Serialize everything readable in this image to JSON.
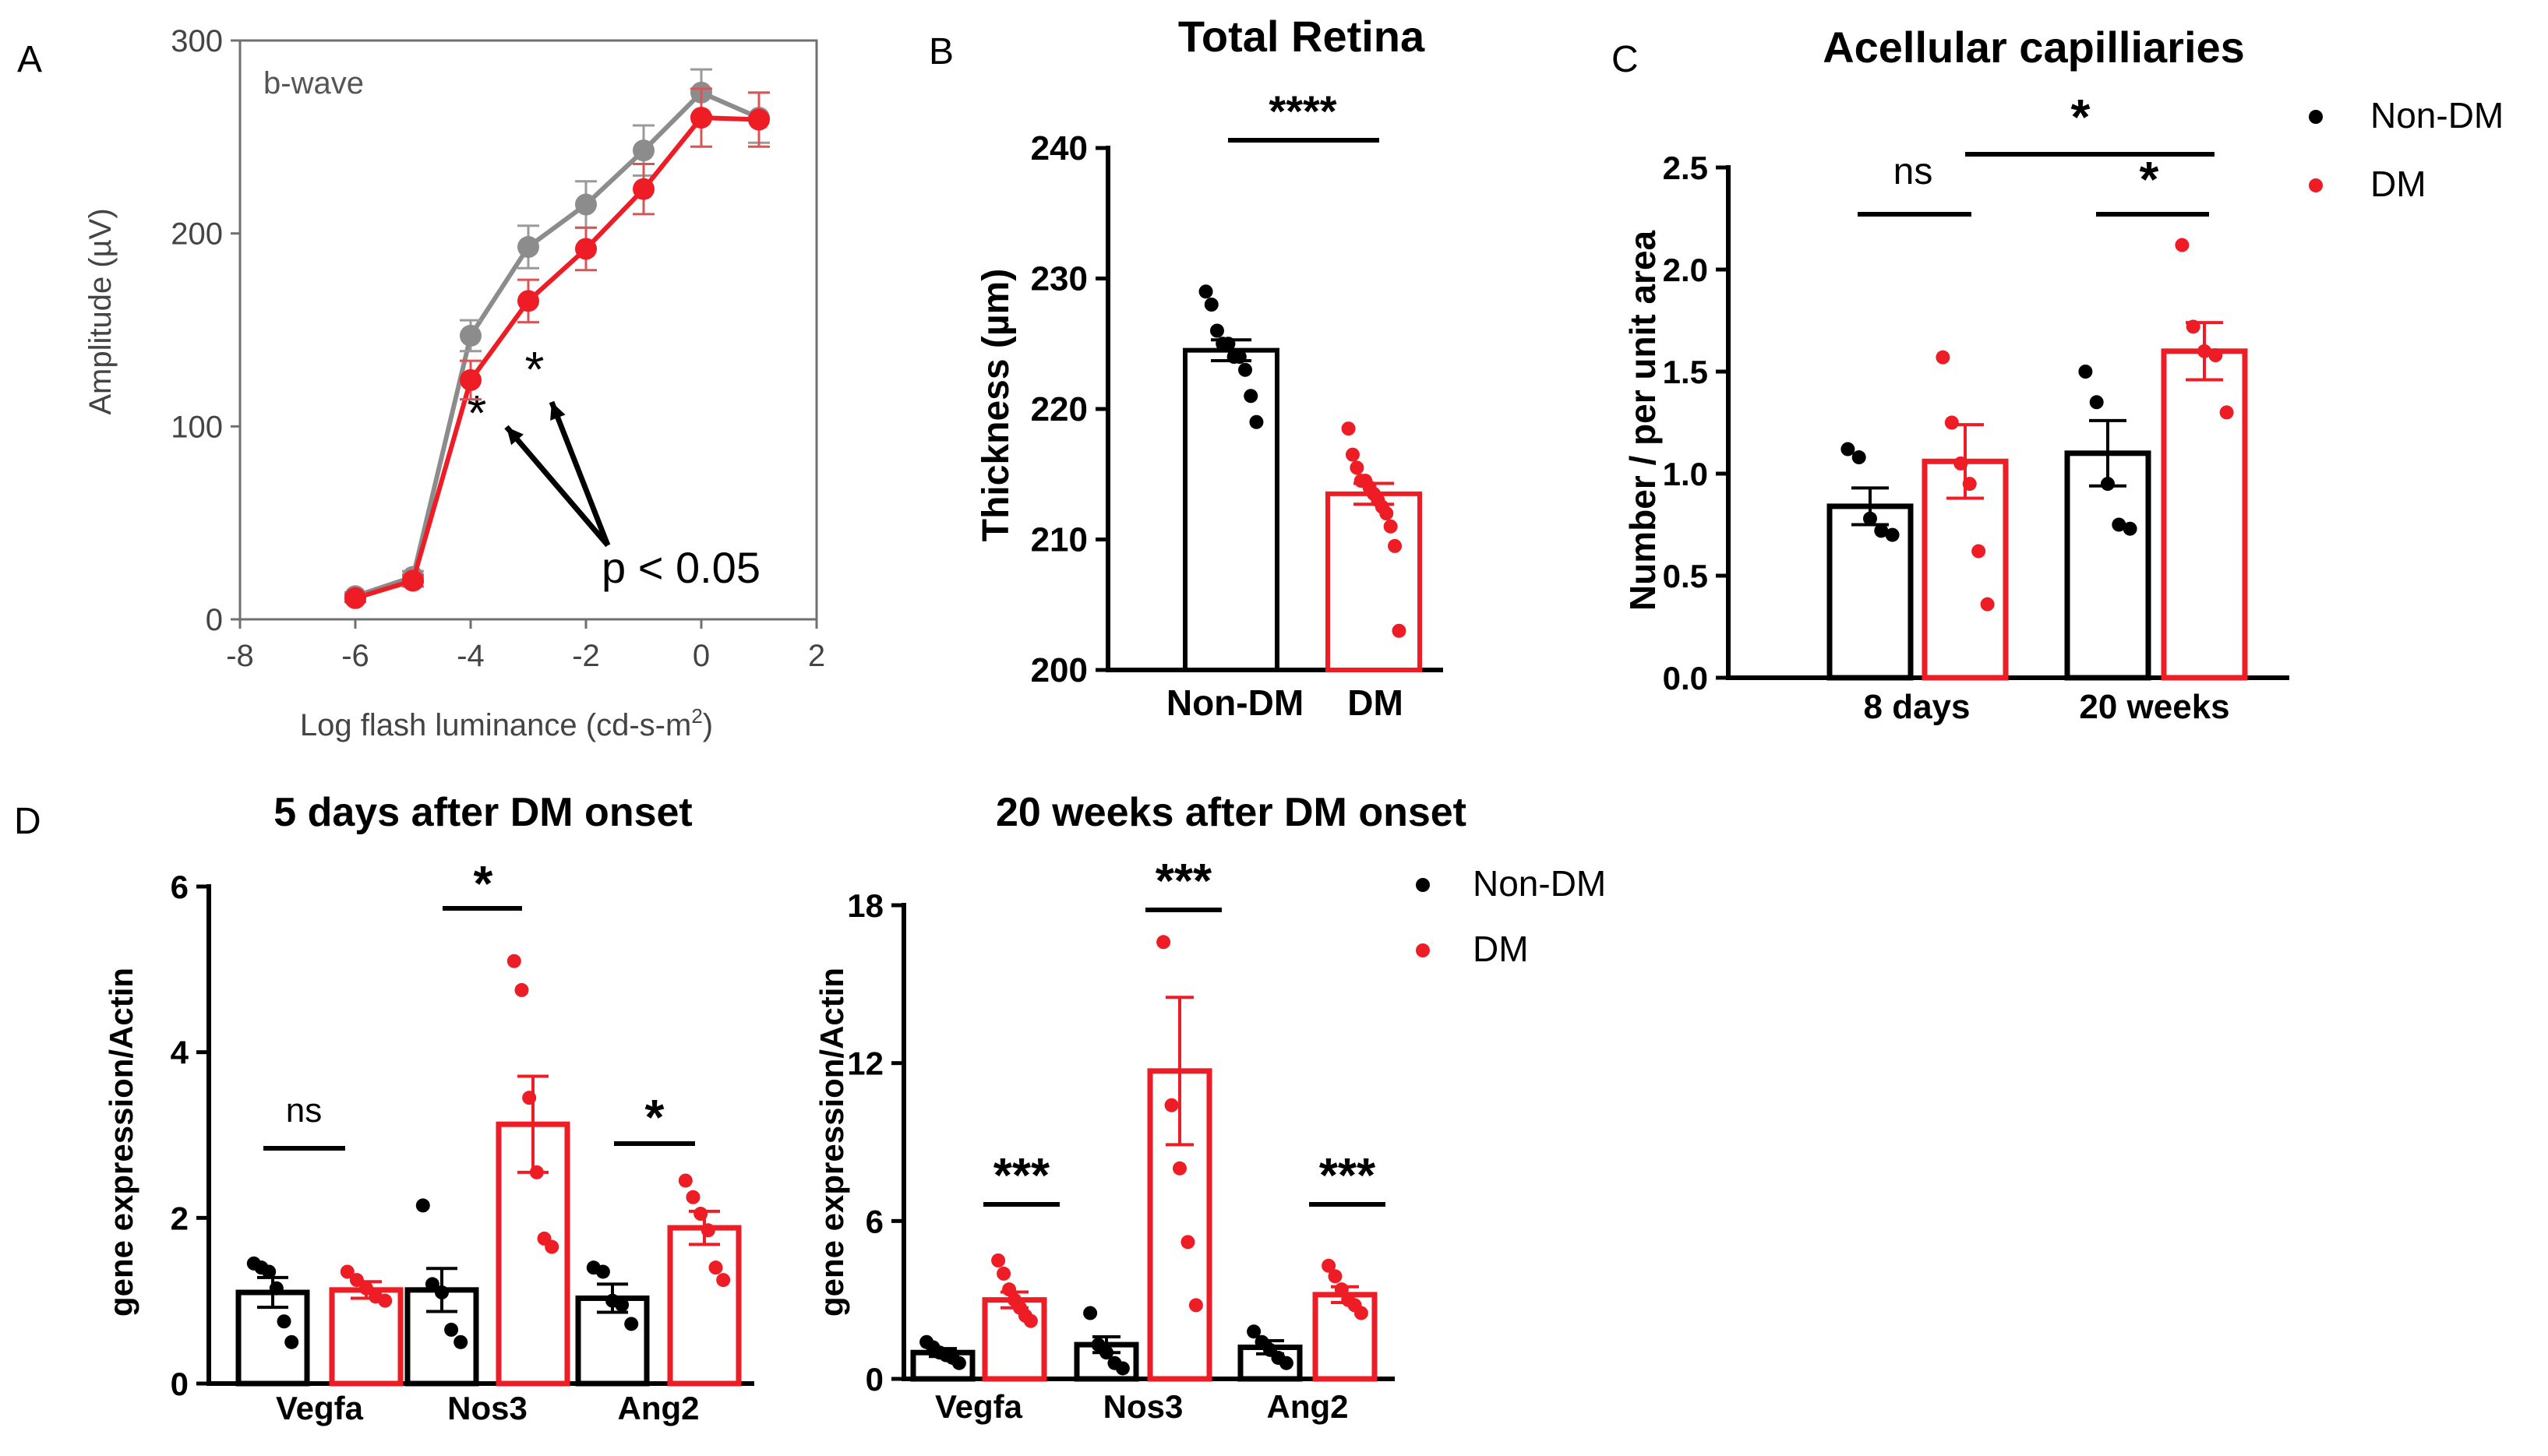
{
  "colors": {
    "non_dm": "#000000",
    "dm": "#ee1c24",
    "wt_gray": "#8c8c8c",
    "dm_light": "#d95555",
    "axis": "#000000",
    "axis_gray": "#707070"
  },
  "panel_labels": [
    "A",
    "B",
    "C",
    "D"
  ],
  "chart_data": [
    {
      "id": "A",
      "type": "line",
      "title": "",
      "inset_label": "b-wave",
      "xlabel": "Log flash luminance (cd-s-m",
      "xlabel_sup": "2",
      "xlabel_end": ")",
      "ylabel": "Amplitude (µV)",
      "xlim": [
        -8,
        2
      ],
      "ylim": [
        0,
        300
      ],
      "xticks": [
        -8,
        -6,
        -4,
        -2,
        0,
        2
      ],
      "yticks": [
        0,
        100,
        200,
        300
      ],
      "series": [
        {
          "name": "Non-DM",
          "color": "#8c8c8c",
          "x": [
            -6,
            -5,
            -4,
            -3,
            -2,
            -1,
            0,
            1
          ],
          "y": [
            12,
            22,
            147,
            193,
            215,
            243,
            273,
            260
          ],
          "err": [
            2,
            3,
            8,
            11,
            12,
            13,
            12,
            13
          ]
        },
        {
          "name": "DM",
          "color": "#ee1c24",
          "x": [
            -6,
            -5,
            -4,
            -3,
            -2,
            -1,
            0,
            1
          ],
          "y": [
            11,
            20,
            124,
            165,
            192,
            223,
            260,
            259
          ],
          "err": [
            2,
            3,
            10,
            11,
            11,
            13,
            15,
            14
          ]
        }
      ],
      "annotations": {
        "stars": [
          "*",
          "*"
        ],
        "pvalue": "p < 0.05"
      }
    },
    {
      "id": "B",
      "type": "bar",
      "title": "Total Retina",
      "ylabel": "Thickness (µm)",
      "categories": [
        "Non-DM",
        "DM"
      ],
      "values": [
        224.5,
        213.5
      ],
      "sem": [
        0.8,
        0.8
      ],
      "ylim": [
        200,
        240
      ],
      "yticks": [
        200,
        210,
        220,
        230,
        240
      ],
      "points": [
        [
          229,
          228,
          226,
          225,
          225,
          224,
          224,
          223,
          221,
          219
        ],
        [
          218.5,
          216.5,
          215.5,
          214.5,
          214.5,
          214,
          213.5,
          213,
          212.5,
          212,
          211,
          209.5,
          203
        ]
      ],
      "significance": "****"
    },
    {
      "id": "C",
      "type": "bar",
      "title": "Acellular capilliaries",
      "ylabel": "Number / per unit area",
      "categories": [
        "8 days",
        "20 weeks"
      ],
      "series": [
        {
          "name": "Non-DM",
          "values": [
            0.84,
            1.1
          ],
          "sem": [
            0.09,
            0.16
          ]
        },
        {
          "name": "DM",
          "values": [
            1.06,
            1.6
          ],
          "sem": [
            0.18,
            0.14
          ]
        }
      ],
      "points": [
        [
          [
            1.12,
            1.08,
            0.78,
            0.72,
            0.7
          ],
          [
            1.5,
            1.35,
            0.95,
            0.75,
            0.73
          ]
        ],
        [
          [
            1.57,
            1.25,
            1.05,
            0.95,
            0.62,
            0.36
          ],
          [
            2.12,
            1.72,
            1.6,
            1.58,
            1.3
          ]
        ]
      ],
      "ylim": [
        0,
        2.5
      ],
      "yticks": [
        "0.0",
        "0.5",
        "1.0",
        "1.5",
        "2.0",
        "2.5"
      ],
      "significance": {
        "group1": "ns",
        "group2": "*",
        "across": "*"
      },
      "legend": [
        "Non-DM",
        "DM"
      ]
    },
    {
      "id": "D1",
      "type": "bar",
      "title": "5 days after DM onset",
      "ylabel": "gene expression/Actin",
      "categories": [
        "Vegfa",
        "Nos3",
        "Ang2"
      ],
      "series": [
        {
          "name": "Non-DM",
          "values": [
            1.1,
            1.13,
            1.03
          ],
          "sem": [
            0.18,
            0.26,
            0.17
          ]
        },
        {
          "name": "DM",
          "values": [
            1.13,
            3.13,
            1.88
          ],
          "sem": [
            0.1,
            0.58,
            0.2
          ]
        }
      ],
      "points": [
        [
          [
            1.45,
            1.4,
            1.35,
            1.15,
            0.75,
            0.5
          ],
          [
            2.15,
            1.2,
            1.1,
            0.65,
            0.5
          ],
          [
            1.4,
            1.35,
            1.0,
            0.95,
            0.72
          ]
        ],
        [
          [
            1.35,
            1.25,
            1.15,
            1.05,
            1.0
          ],
          [
            5.1,
            4.75,
            3.45,
            2.55,
            1.75,
            1.65
          ],
          [
            2.45,
            2.25,
            2.05,
            1.85,
            1.4,
            1.25
          ]
        ]
      ],
      "ylim": [
        0,
        6
      ],
      "yticks": [
        "0",
        "2",
        "4",
        "6"
      ],
      "significance": [
        "ns",
        "*",
        "*"
      ]
    },
    {
      "id": "D2",
      "type": "bar",
      "title": "20 weeks after DM onset",
      "ylabel": "gene expression/Actin",
      "categories": [
        "Vegfa",
        "Nos3",
        "Ang2"
      ],
      "series": [
        {
          "name": "Non-DM",
          "values": [
            1.0,
            1.3,
            1.2
          ],
          "sem": [
            0.15,
            0.3,
            0.25
          ]
        },
        {
          "name": "DM",
          "values": [
            3.0,
            11.7,
            3.2
          ],
          "sem": [
            0.3,
            2.8,
            0.3
          ]
        }
      ],
      "points": [
        [
          [
            1.4,
            1.2,
            1.0,
            0.9,
            0.8,
            0.6
          ],
          [
            2.5,
            1.3,
            1.0,
            0.6,
            0.4
          ],
          [
            1.8,
            1.4,
            1.1,
            0.8,
            0.6
          ]
        ],
        [
          [
            4.5,
            4.0,
            3.4,
            3.0,
            2.7,
            2.4,
            2.2
          ],
          [
            16.6,
            10.4,
            8.0,
            5.2,
            2.8
          ],
          [
            4.3,
            3.9,
            3.4,
            3.0,
            2.8,
            2.5
          ]
        ]
      ],
      "ylim": [
        0,
        18
      ],
      "yticks": [
        "0",
        "6",
        "12",
        "18"
      ],
      "significance": [
        "***",
        "***",
        "***"
      ],
      "legend": [
        "Non-DM",
        "DM"
      ]
    }
  ]
}
